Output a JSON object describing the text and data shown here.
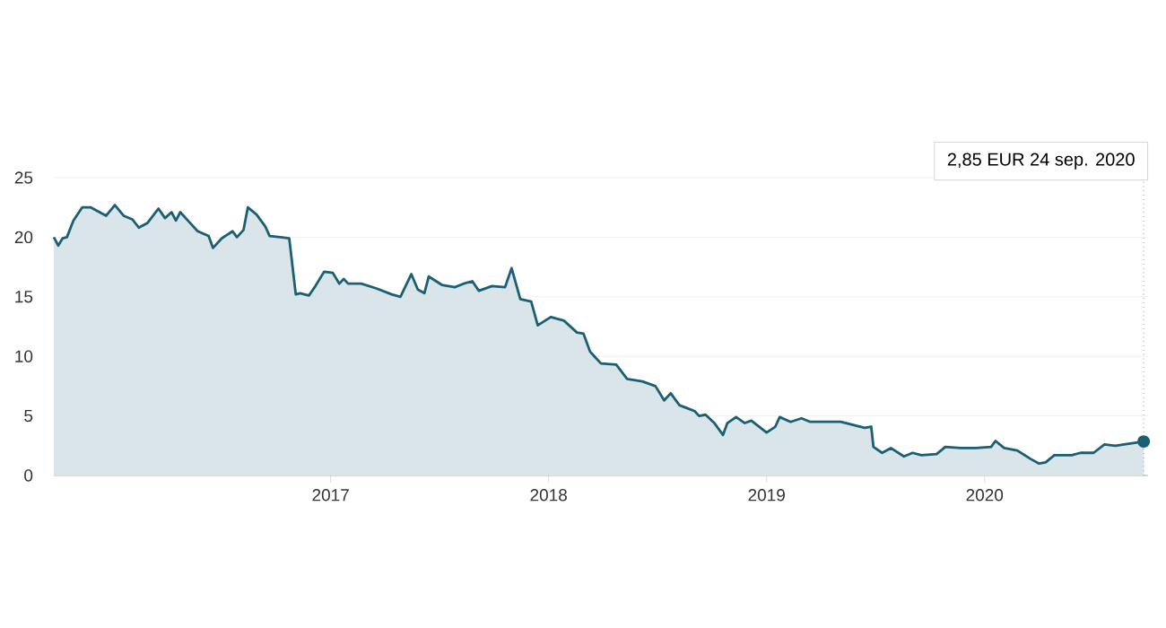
{
  "chart_data": {
    "type": "area",
    "x": [
      2015.73,
      2015.75,
      2015.77,
      2015.79,
      2015.82,
      2015.86,
      2015.9,
      2015.93,
      2015.97,
      2016.01,
      2016.05,
      2016.09,
      2016.12,
      2016.16,
      2016.21,
      2016.24,
      2016.27,
      2016.29,
      2016.31,
      2016.35,
      2016.39,
      2016.44,
      2016.46,
      2016.5,
      2016.55,
      2016.57,
      2016.6,
      2016.62,
      2016.66,
      2016.7,
      2016.72,
      2016.77,
      2016.81,
      2016.84,
      2016.86,
      2016.9,
      2016.93,
      2016.97,
      2017.01,
      2017.04,
      2017.06,
      2017.08,
      2017.14,
      2017.21,
      2017.28,
      2017.32,
      2017.37,
      2017.4,
      2017.43,
      2017.45,
      2017.51,
      2017.57,
      2017.61,
      2017.65,
      2017.68,
      2017.74,
      2017.8,
      2017.83,
      2017.87,
      2017.92,
      2017.95,
      2018.01,
      2018.07,
      2018.13,
      2018.16,
      2018.19,
      2018.21,
      2018.24,
      2018.31,
      2018.36,
      2018.43,
      2018.49,
      2018.53,
      2018.56,
      2018.6,
      2018.67,
      2018.69,
      2018.72,
      2018.76,
      2018.8,
      2018.82,
      2018.86,
      2018.9,
      2018.93,
      2019.0,
      2019.04,
      2019.06,
      2019.11,
      2019.16,
      2019.2,
      2019.34,
      2019.45,
      2019.48,
      2019.49,
      2019.53,
      2019.57,
      2019.63,
      2019.67,
      2019.71,
      2019.78,
      2019.82,
      2019.89,
      2019.96,
      2020.03,
      2020.05,
      2020.09,
      2020.15,
      2020.21,
      2020.25,
      2020.28,
      2020.32,
      2020.4,
      2020.44,
      2020.5,
      2020.55,
      2020.6,
      2020.64,
      2020.73
    ],
    "values": [
      20.0,
      19.3,
      19.9,
      20.0,
      21.4,
      22.5,
      22.5,
      22.2,
      21.8,
      22.7,
      21.8,
      21.5,
      20.8,
      21.2,
      22.4,
      21.6,
      22.1,
      21.4,
      22.1,
      21.3,
      20.5,
      20.1,
      19.1,
      19.9,
      20.5,
      20.0,
      20.6,
      22.5,
      21.9,
      20.9,
      20.1,
      20.0,
      19.9,
      15.2,
      15.3,
      15.1,
      15.9,
      17.1,
      17.0,
      16.1,
      16.5,
      16.1,
      16.1,
      15.7,
      15.2,
      15.0,
      16.9,
      15.6,
      15.3,
      16.7,
      16.0,
      15.8,
      16.1,
      16.3,
      15.5,
      15.9,
      15.8,
      17.4,
      14.8,
      14.6,
      12.6,
      13.3,
      13.0,
      12.0,
      11.9,
      10.4,
      10.0,
      9.4,
      9.3,
      8.1,
      7.9,
      7.5,
      6.3,
      6.9,
      5.9,
      5.4,
      5.0,
      5.1,
      4.4,
      3.4,
      4.4,
      4.9,
      4.4,
      4.6,
      3.6,
      4.1,
      4.9,
      4.5,
      4.8,
      4.5,
      4.5,
      4.0,
      4.1,
      2.4,
      1.9,
      2.3,
      1.6,
      1.9,
      1.7,
      1.8,
      2.4,
      2.3,
      2.3,
      2.4,
      2.9,
      2.3,
      2.1,
      1.4,
      1.0,
      1.1,
      1.7,
      1.7,
      1.9,
      1.9,
      2.6,
      2.5,
      2.6,
      2.85
    ],
    "color": "#1a5f73",
    "xlim": [
      2015.73,
      2020.75
    ],
    "ylim": [
      0,
      25
    ],
    "xticks": [
      2017,
      2018,
      2019,
      2020
    ],
    "yticks": [
      0,
      5,
      10,
      15,
      20,
      25
    ],
    "grid": "y",
    "ref_lines": [
      {
        "axis": "x",
        "value": 2020.73,
        "line_style": "dotted",
        "color": "#555555"
      }
    ],
    "annotations": [
      "2,85 EUR  24 sep. 2020"
    ]
  }
}
